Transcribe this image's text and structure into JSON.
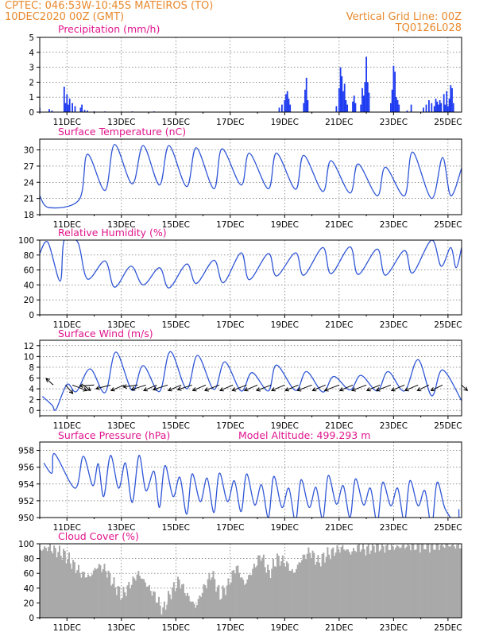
{
  "header": {
    "line1": "CPTEC:   046:53W-10:45S   MATEIROS (TO)",
    "line2": "10DEC2020 00Z (GMT)",
    "grid_note": "Vertical Grid Line: 00Z",
    "code": "TQ0126L028"
  },
  "colors": {
    "series": "#2f56d6",
    "bars": "#1f3cf0",
    "cloud": "#a9a9a9",
    "header": "#e8892d",
    "title": "#e0148c"
  },
  "chart_data": [
    {
      "id": "precip",
      "type": "bar",
      "title": "Precipitation (mm/h)",
      "x_ticks": [
        "11DEC",
        "13DEC",
        "15DEC",
        "17DEC",
        "19DEC",
        "21DEC",
        "23DEC",
        "25DEC"
      ],
      "ylim": [
        0,
        5
      ],
      "yticks": [
        0,
        1,
        2,
        3,
        4,
        5
      ],
      "grid": true,
      "values": [
        [
          0.0,
          0.3
        ],
        [
          0.35,
          0.2
        ],
        [
          0.45,
          0.1
        ],
        [
          0.9,
          1.7
        ],
        [
          0.95,
          0.6
        ],
        [
          1.0,
          1.2
        ],
        [
          1.05,
          0.5
        ],
        [
          1.1,
          0.9
        ],
        [
          1.2,
          0.6
        ],
        [
          1.3,
          0.4
        ],
        [
          1.5,
          0.3
        ],
        [
          1.55,
          0.5
        ],
        [
          1.65,
          0.15
        ],
        [
          1.75,
          0.1
        ],
        [
          2.0,
          0.05
        ],
        [
          2.4,
          0.05
        ],
        [
          3.4,
          0.05
        ],
        [
          4.2,
          0.05
        ],
        [
          8.8,
          0.3
        ],
        [
          8.9,
          0.5
        ],
        [
          9.0,
          0.8
        ],
        [
          9.05,
          1.2
        ],
        [
          9.1,
          1.4
        ],
        [
          9.15,
          0.9
        ],
        [
          9.2,
          0.5
        ],
        [
          9.7,
          0.6
        ],
        [
          9.75,
          1.5
        ],
        [
          9.8,
          2.3
        ],
        [
          9.85,
          0.8
        ],
        [
          10.9,
          0.4
        ],
        [
          11.0,
          1.6
        ],
        [
          11.05,
          3.0
        ],
        [
          11.1,
          2.4
        ],
        [
          11.15,
          1.4
        ],
        [
          11.2,
          1.9
        ],
        [
          11.25,
          0.8
        ],
        [
          11.3,
          0.5
        ],
        [
          11.5,
          0.7
        ],
        [
          11.55,
          1.1
        ],
        [
          11.6,
          0.6
        ],
        [
          11.8,
          0.5
        ],
        [
          11.85,
          1.6
        ],
        [
          11.9,
          1.1
        ],
        [
          11.95,
          2.0
        ],
        [
          12.0,
          3.7
        ],
        [
          12.05,
          2.0
        ],
        [
          12.1,
          1.3
        ],
        [
          12.9,
          0.6
        ],
        [
          12.95,
          1.5
        ],
        [
          13.0,
          3.1
        ],
        [
          13.05,
          2.7
        ],
        [
          13.1,
          1.0
        ],
        [
          13.15,
          0.8
        ],
        [
          13.2,
          0.5
        ],
        [
          13.5,
          0.1
        ],
        [
          13.65,
          0.5
        ],
        [
          14.1,
          0.3
        ],
        [
          14.2,
          0.5
        ],
        [
          14.3,
          0.8
        ],
        [
          14.4,
          0.6
        ],
        [
          14.5,
          0.4
        ],
        [
          14.55,
          0.9
        ],
        [
          14.6,
          0.7
        ],
        [
          14.65,
          0.5
        ],
        [
          14.7,
          0.8
        ],
        [
          14.75,
          0.6
        ],
        [
          14.85,
          1.2
        ],
        [
          14.9,
          0.5
        ],
        [
          14.95,
          1.4
        ],
        [
          15.0,
          0.4
        ],
        [
          15.05,
          0.9
        ],
        [
          15.1,
          1.8
        ],
        [
          15.15,
          1.6
        ],
        [
          15.2,
          0.6
        ]
      ]
    },
    {
      "id": "temp",
      "type": "line",
      "title": "Surface Temperature (nC)",
      "x_ticks": [
        "11DEC",
        "13DEC",
        "15DEC",
        "17DEC",
        "19DEC",
        "21DEC",
        "23DEC",
        "25DEC"
      ],
      "ylim": [
        18,
        32
      ],
      "yticks": [
        18,
        21,
        24,
        27,
        30
      ],
      "grid": true,
      "max": [
        [
          0.0,
          21.5
        ],
        [
          1.75,
          29.2
        ],
        [
          2.75,
          31.0
        ],
        [
          3.8,
          30.8
        ],
        [
          4.75,
          30.8
        ],
        [
          5.75,
          30.4
        ],
        [
          6.7,
          30.2
        ],
        [
          7.7,
          29.4
        ],
        [
          8.7,
          29.4
        ],
        [
          9.7,
          29.0
        ],
        [
          10.7,
          28.0
        ],
        [
          11.7,
          27.4
        ],
        [
          12.7,
          26.8
        ],
        [
          13.7,
          29.6
        ],
        [
          14.8,
          28.6
        ],
        [
          15.5,
          26.6
        ]
      ],
      "min": [
        [
          0.35,
          19.3
        ],
        [
          1.45,
          20.8
        ],
        [
          2.4,
          22.5
        ],
        [
          3.4,
          23.7
        ],
        [
          4.4,
          23.5
        ],
        [
          5.4,
          23.2
        ],
        [
          6.4,
          22.8
        ],
        [
          7.4,
          23.5
        ],
        [
          8.4,
          22.8
        ],
        [
          9.4,
          22.7
        ],
        [
          10.4,
          22.3
        ],
        [
          11.4,
          22.0
        ],
        [
          12.4,
          21.5
        ],
        [
          13.4,
          21.5
        ],
        [
          14.4,
          21.0
        ],
        [
          15.1,
          21.5
        ]
      ]
    },
    {
      "id": "rh",
      "type": "line",
      "title": "Relative Humidity (%)",
      "x_ticks": [
        "11DEC",
        "13DEC",
        "15DEC",
        "17DEC",
        "19DEC",
        "21DEC",
        "23DEC",
        "25DEC"
      ],
      "ylim": [
        0,
        100
      ],
      "yticks": [
        0,
        20,
        40,
        60,
        80,
        100
      ],
      "grid": true,
      "max": [
        [
          0.0,
          82
        ],
        [
          0.3,
          97
        ],
        [
          0.9,
          100
        ],
        [
          1.4,
          97
        ],
        [
          2.4,
          72
        ],
        [
          3.35,
          65
        ],
        [
          4.4,
          63
        ],
        [
          5.4,
          68
        ],
        [
          6.4,
          73
        ],
        [
          7.4,
          83
        ],
        [
          8.4,
          82
        ],
        [
          9.4,
          83
        ],
        [
          10.4,
          90
        ],
        [
          11.4,
          91
        ],
        [
          12.4,
          88
        ],
        [
          13.4,
          86
        ],
        [
          14.4,
          100
        ],
        [
          15.1,
          90
        ],
        [
          15.5,
          90
        ]
      ],
      "min": [
        [
          0.75,
          45
        ],
        [
          1.75,
          48
        ],
        [
          2.75,
          37
        ],
        [
          3.8,
          40
        ],
        [
          4.75,
          36
        ],
        [
          5.75,
          42
        ],
        [
          6.75,
          43
        ],
        [
          7.7,
          47
        ],
        [
          8.7,
          52
        ],
        [
          9.7,
          53
        ],
        [
          10.7,
          55
        ],
        [
          11.7,
          54
        ],
        [
          12.7,
          53
        ],
        [
          13.7,
          56
        ],
        [
          14.75,
          65
        ],
        [
          15.3,
          63
        ]
      ]
    },
    {
      "id": "wind",
      "type": "line",
      "title": "Surface Wind (m/s)",
      "x_ticks": [
        "11DEC",
        "13DEC",
        "15DEC",
        "17DEC",
        "19DEC",
        "21DEC",
        "23DEC",
        "25DEC"
      ],
      "ylim": [
        -1,
        13
      ],
      "yticks": [
        0,
        2,
        4,
        6,
        8,
        10,
        12
      ],
      "grid": true,
      "max": [
        [
          0.1,
          2.6
        ],
        [
          1.0,
          4.8
        ],
        [
          1.85,
          7.7
        ],
        [
          2.8,
          10.8
        ],
        [
          3.8,
          8.3
        ],
        [
          4.8,
          10.9
        ],
        [
          5.8,
          10.2
        ],
        [
          6.8,
          9.0
        ],
        [
          7.8,
          7.0
        ],
        [
          8.7,
          8.4
        ],
        [
          9.8,
          7.2
        ],
        [
          10.8,
          6.3
        ],
        [
          11.8,
          6.5
        ],
        [
          12.8,
          7.2
        ],
        [
          13.9,
          9.4
        ],
        [
          14.8,
          7.5
        ]
      ],
      "min": [
        [
          0.45,
          1.0
        ],
        [
          0.6,
          0.2
        ],
        [
          1.35,
          3.5
        ],
        [
          2.4,
          3.3
        ],
        [
          3.4,
          3.7
        ],
        [
          4.4,
          3.5
        ],
        [
          5.4,
          4.0
        ],
        [
          6.4,
          3.9
        ],
        [
          7.4,
          3.6
        ],
        [
          8.4,
          3.6
        ],
        [
          9.4,
          3.7
        ],
        [
          10.4,
          3.4
        ],
        [
          11.4,
          3.8
        ],
        [
          12.4,
          3.6
        ],
        [
          13.4,
          3.6
        ],
        [
          14.4,
          2.7
        ],
        [
          15.5,
          1.8
        ]
      ],
      "vectors": [
        [
          0.5,
          -0.5,
          -0.7
        ],
        [
          0.95,
          0.5,
          0.9
        ],
        [
          1.2,
          1.0,
          0.6
        ],
        [
          1.6,
          0.5,
          0.6
        ],
        [
          2.0,
          -1.0,
          0.1
        ],
        [
          2.6,
          -1.0,
          0.4
        ],
        [
          3.1,
          -0.9,
          0.6
        ],
        [
          3.6,
          -1.0,
          0.2
        ],
        [
          3.9,
          -1.0,
          0.5
        ],
        [
          4.3,
          -0.9,
          0.6
        ],
        [
          4.7,
          -1.0,
          0.5
        ],
        [
          5.2,
          -0.9,
          0.6
        ],
        [
          5.6,
          -1.0,
          0.5
        ],
        [
          6.1,
          -0.9,
          0.6
        ],
        [
          6.6,
          -1.0,
          0.6
        ],
        [
          7.1,
          -0.9,
          0.6
        ],
        [
          7.6,
          -1.0,
          0.6
        ],
        [
          8.0,
          -0.9,
          0.6
        ],
        [
          8.5,
          -1.0,
          0.6
        ],
        [
          9.0,
          -0.9,
          0.6
        ],
        [
          9.5,
          -0.9,
          0.6
        ],
        [
          10.0,
          -1.0,
          0.6
        ],
        [
          10.5,
          -0.9,
          0.6
        ],
        [
          11.0,
          -1.0,
          0.6
        ],
        [
          11.5,
          -0.9,
          0.6
        ],
        [
          12.0,
          -1.0,
          0.6
        ],
        [
          12.5,
          -0.9,
          0.6
        ],
        [
          12.9,
          -1.0,
          0.6
        ],
        [
          13.4,
          -0.9,
          0.6
        ],
        [
          13.9,
          -0.9,
          0.6
        ],
        [
          14.3,
          -0.8,
          0.6
        ],
        [
          14.8,
          -0.8,
          0.6
        ],
        [
          15.5,
          0.4,
          0.6
        ]
      ]
    },
    {
      "id": "press",
      "type": "line",
      "title": "Surface Pressure (hPa)",
      "note": "Model Altitude: 499.293 m",
      "x_ticks": [
        "11DEC",
        "13DEC",
        "15DEC",
        "17DEC",
        "19DEC",
        "21DEC",
        "23DEC",
        "25DEC"
      ],
      "ylim": [
        950,
        959
      ],
      "yticks": [
        950,
        952,
        954,
        956,
        958
      ],
      "grid": true,
      "max": [
        [
          0.15,
          956.5
        ],
        [
          0.55,
          957.6
        ],
        [
          1.6,
          957.3
        ],
        [
          2.15,
          956.4
        ],
        [
          2.6,
          957.4
        ],
        [
          3.15,
          956.5
        ],
        [
          3.65,
          957.4
        ],
        [
          4.2,
          955.5
        ],
        [
          4.6,
          956.2
        ],
        [
          5.15,
          954.8
        ],
        [
          5.6,
          955.2
        ],
        [
          6.15,
          954.7
        ],
        [
          6.6,
          955.3
        ],
        [
          7.15,
          954.4
        ],
        [
          7.6,
          955.2
        ],
        [
          8.15,
          953.9
        ],
        [
          8.6,
          954.9
        ],
        [
          9.15,
          953.5
        ],
        [
          9.6,
          954.5
        ],
        [
          10.15,
          953.6
        ],
        [
          10.6,
          955.0
        ],
        [
          11.15,
          953.8
        ],
        [
          11.6,
          954.6
        ],
        [
          12.15,
          953.5
        ],
        [
          12.6,
          954.2
        ],
        [
          13.15,
          953.5
        ],
        [
          13.6,
          954.4
        ],
        [
          14.15,
          953.2
        ],
        [
          14.6,
          954.2
        ],
        [
          15.4,
          951.0
        ]
      ],
      "min": [
        [
          0.45,
          955.3
        ],
        [
          1.3,
          953.5
        ],
        [
          1.95,
          953.8
        ],
        [
          2.35,
          952.5
        ],
        [
          2.9,
          953.5
        ],
        [
          3.4,
          951.8
        ],
        [
          3.9,
          953.2
        ],
        [
          4.4,
          951.2
        ],
        [
          4.9,
          952.5
        ],
        [
          5.4,
          950.4
        ],
        [
          5.9,
          951.9
        ],
        [
          6.4,
          950.6
        ],
        [
          6.9,
          951.9
        ],
        [
          7.4,
          950.7
        ],
        [
          7.9,
          951.5
        ],
        [
          8.4,
          950.0
        ],
        [
          8.9,
          951.2
        ],
        [
          9.4,
          949.5
        ],
        [
          9.9,
          951.2
        ],
        [
          10.4,
          949.8
        ],
        [
          10.9,
          951.6
        ],
        [
          11.4,
          950.0
        ],
        [
          11.9,
          951.5
        ],
        [
          12.4,
          949.4
        ],
        [
          12.9,
          951.4
        ],
        [
          13.4,
          949.5
        ],
        [
          13.9,
          951.4
        ],
        [
          14.4,
          949.0
        ],
        [
          14.9,
          951.0
        ],
        [
          15.35,
          949.2
        ]
      ]
    },
    {
      "id": "cloud",
      "type": "area",
      "title": "Cloud Cover (%)",
      "x_ticks": [
        "11DEC",
        "13DEC",
        "15DEC",
        "17DEC",
        "19DEC",
        "21DEC",
        "23DEC",
        "25DEC"
      ],
      "ylim": [
        0,
        100
      ],
      "yticks": [
        0,
        20,
        40,
        60,
        80,
        100
      ],
      "grid": true,
      "points": [
        [
          0.0,
          92
        ],
        [
          0.3,
          95
        ],
        [
          0.6,
          90
        ],
        [
          0.9,
          85
        ],
        [
          1.2,
          72
        ],
        [
          1.5,
          60
        ],
        [
          1.8,
          55
        ],
        [
          2.1,
          70
        ],
        [
          2.4,
          65
        ],
        [
          2.7,
          45
        ],
        [
          3.0,
          30
        ],
        [
          3.3,
          45
        ],
        [
          3.6,
          60
        ],
        [
          3.9,
          45
        ],
        [
          4.2,
          30
        ],
        [
          4.5,
          10
        ],
        [
          4.8,
          35
        ],
        [
          5.1,
          50
        ],
        [
          5.4,
          30
        ],
        [
          5.7,
          15
        ],
        [
          6.0,
          40
        ],
        [
          6.3,
          60
        ],
        [
          6.6,
          30
        ],
        [
          6.9,
          45
        ],
        [
          7.2,
          70
        ],
        [
          7.5,
          45
        ],
        [
          7.8,
          65
        ],
        [
          8.1,
          85
        ],
        [
          8.4,
          60
        ],
        [
          8.7,
          80
        ],
        [
          9.0,
          75
        ],
        [
          9.3,
          60
        ],
        [
          9.6,
          80
        ],
        [
          9.9,
          90
        ],
        [
          10.2,
          75
        ],
        [
          10.5,
          85
        ],
        [
          10.8,
          90
        ],
        [
          11.1,
          95
        ],
        [
          11.4,
          88
        ],
        [
          11.7,
          96
        ],
        [
          12.0,
          92
        ],
        [
          12.3,
          98
        ],
        [
          12.6,
          96
        ],
        [
          12.9,
          95
        ],
        [
          13.2,
          96
        ],
        [
          13.5,
          98
        ],
        [
          13.8,
          97
        ],
        [
          14.1,
          99
        ],
        [
          14.4,
          97
        ],
        [
          14.7,
          98
        ],
        [
          15.0,
          98
        ],
        [
          15.3,
          97
        ],
        [
          15.5,
          98
        ]
      ]
    }
  ]
}
